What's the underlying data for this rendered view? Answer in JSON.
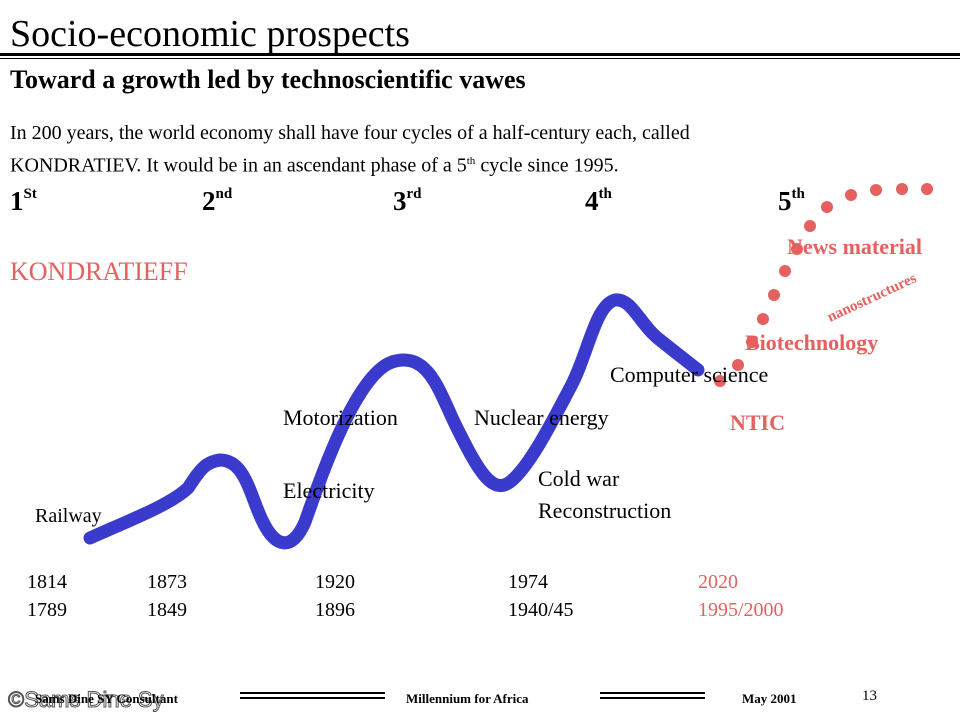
{
  "slide": {
    "title": "Socio-economic  prospects",
    "subtitle": "Toward  a growth led by technoscientific vawes",
    "intro_line1": "In 200 years, the world economy shall have four cycles of a half-century each, called",
    "intro_line2_pre": "KONDRATIEV.  It would be in an ascendant phase of a 5",
    "intro_line2_sup": "th",
    "intro_line2_post": "  cycle since 1995.",
    "kondratieff_label": "KONDRATIEFF"
  },
  "cycles": [
    {
      "num": "1",
      "suffix": "St"
    },
    {
      "num": "2",
      "suffix": "nd"
    },
    {
      "num": "3",
      "suffix": "rd"
    },
    {
      "num": "4",
      "suffix": "th"
    },
    {
      "num": "5",
      "suffix": "th"
    }
  ],
  "waves": {
    "railway": "Railway",
    "electricity": "Electricity",
    "motorization": "Motorization",
    "nuclear": "Nuclear energy",
    "cold_war": "Cold war",
    "reconstruction": "Reconstruction",
    "computer_science": "Computer science",
    "ntic": "NTIC",
    "biotechnology": "Biotechnology",
    "nanostructures": "nanostructures",
    "news_material": "News material"
  },
  "years": [
    {
      "top": "1814",
      "bottom": "1789"
    },
    {
      "top": "1873",
      "bottom": "1849"
    },
    {
      "top": "1920",
      "bottom": "1896"
    },
    {
      "top": "1974",
      "bottom": "1940/45"
    },
    {
      "top": "2020",
      "bottom": "1995/2000"
    }
  ],
  "footer": {
    "author": "Sams Dine SY Consultant",
    "center": "Millennium  for Africa",
    "date": "May 2001",
    "page": "13",
    "watermark": "©Sams Dine Sy"
  },
  "colors": {
    "curve": "#3a3acc",
    "projection": "#e4615f",
    "accent": "#e4615f"
  }
}
